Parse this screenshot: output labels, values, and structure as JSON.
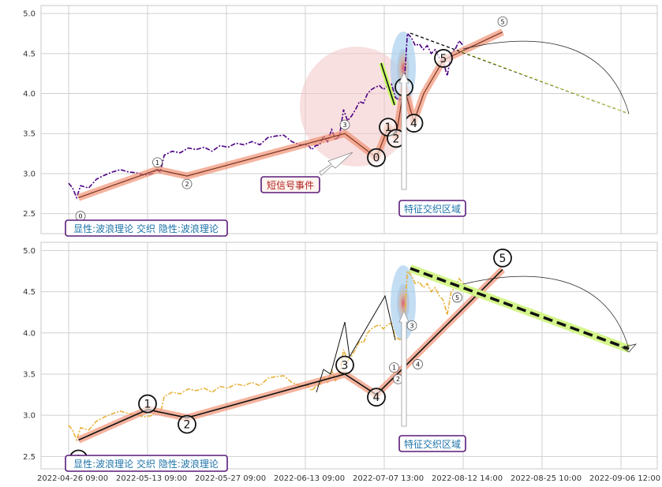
{
  "chart_data": [
    {
      "type": "line",
      "panel": "top",
      "ylim": [
        2.25,
        5.1
      ],
      "y_ticks": [
        "2.5",
        "3.0",
        "3.5",
        "4.0",
        "4.5",
        "5.0"
      ],
      "price_color": "#4b0082",
      "zigzag_x": [
        0.5,
        4.5,
        6.0,
        14.0,
        15.6,
        16.2,
        16.6,
        17.0,
        17.5,
        18.0,
        19.0,
        22.0
      ],
      "zigzag_y": [
        2.7,
        3.05,
        2.97,
        3.5,
        3.2,
        3.58,
        3.47,
        4.08,
        3.65,
        4.0,
        4.42,
        4.77
      ],
      "pivot_labels": [
        {
          "text": "0",
          "x": 0.6,
          "y": 2.47,
          "size": "small"
        },
        {
          "text": "1",
          "x": 4.5,
          "y": 3.14,
          "size": "small"
        },
        {
          "text": "2",
          "x": 6.0,
          "y": 2.87,
          "size": "small"
        },
        {
          "text": "3",
          "x": 14.0,
          "y": 3.61,
          "size": "small"
        },
        {
          "text": "0",
          "x": 15.6,
          "y": 3.2,
          "size": "large"
        },
        {
          "text": "1",
          "x": 16.2,
          "y": 3.58,
          "size": "large"
        },
        {
          "text": "2",
          "x": 16.6,
          "y": 3.44,
          "size": "large"
        },
        {
          "text": "3",
          "x": 17.0,
          "y": 4.08,
          "size": "large"
        },
        {
          "text": "4",
          "x": 17.5,
          "y": 3.63,
          "size": "large"
        },
        {
          "text": "5",
          "x": 19.0,
          "y": 4.44,
          "size": "large"
        },
        {
          "text": "5",
          "x": 22.0,
          "y": 4.9,
          "size": "small"
        }
      ],
      "annotations": {
        "short_signal": "短信号事件",
        "feature_zone": "特征交织区域",
        "legend": "显性:波浪理论 交织 隐性:波浪理论"
      }
    },
    {
      "type": "line",
      "panel": "bottom",
      "ylim": [
        2.35,
        5.1
      ],
      "y_ticks": [
        "2.5",
        "3.0",
        "3.5",
        "4.0",
        "4.5",
        "5.0"
      ],
      "price_color": "#e8b13a",
      "zigzag_x": [
        0.5,
        4.0,
        6.0,
        14.0,
        15.6,
        22.0
      ],
      "zigzag_y": [
        2.7,
        3.07,
        2.97,
        3.5,
        3.25,
        4.77
      ],
      "pivot_labels": [
        {
          "text": "0",
          "x": 0.5,
          "y": 2.47,
          "size": "large"
        },
        {
          "text": "1",
          "x": 4.0,
          "y": 3.14,
          "size": "large"
        },
        {
          "text": "2",
          "x": 6.0,
          "y": 2.89,
          "size": "large"
        },
        {
          "text": "3",
          "x": 14.0,
          "y": 3.61,
          "size": "large"
        },
        {
          "text": "4",
          "x": 15.6,
          "y": 3.22,
          "size": "large"
        },
        {
          "text": "1",
          "x": 16.5,
          "y": 3.58,
          "size": "small"
        },
        {
          "text": "2",
          "x": 16.7,
          "y": 3.44,
          "size": "small"
        },
        {
          "text": "3",
          "x": 17.4,
          "y": 4.09,
          "size": "small"
        },
        {
          "text": "4",
          "x": 17.7,
          "y": 3.62,
          "size": "small"
        },
        {
          "text": "5",
          "x": 19.7,
          "y": 4.43,
          "size": "small"
        },
        {
          "text": "5",
          "x": 22.0,
          "y": 4.91,
          "size": "large"
        }
      ],
      "annotations": {
        "feature_zone": "特征交织区域",
        "legend": "显性:波浪理论 交织 隐性:波浪理论"
      }
    }
  ],
  "x_ticks": [
    "2022-04-26 09:00",
    "2022-05-13 09:00",
    "2022-05-27 09:00",
    "2022-06-13 09:00",
    "2022-07-07 13:00",
    "2022-08-12 14:00",
    "2022-08-25 10:00",
    "2022-09-06 12:00"
  ]
}
